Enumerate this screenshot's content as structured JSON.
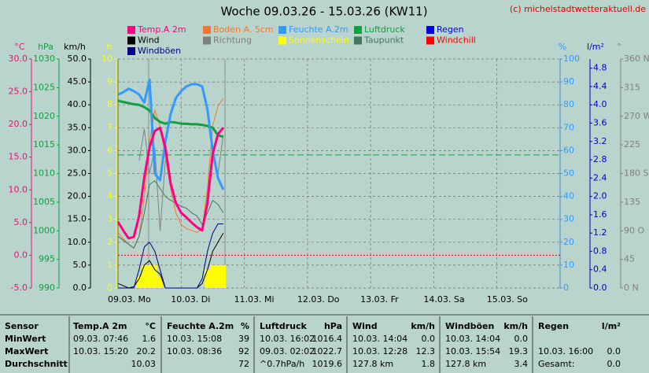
{
  "chart_data": {
    "type": "line",
    "title": "Woche 09.03.26 - 15.03.26 (KW11)",
    "credit": "(c) michelstadtwetteraktuell.de",
    "xlim": [
      0,
      168
    ],
    "xticks": [
      {
        "value": 0,
        "label": "09.03. Mo"
      },
      {
        "value": 24,
        "label": "10.03. Di"
      },
      {
        "value": 48,
        "label": "11.03. Mi"
      },
      {
        "value": 72,
        "label": "12.03. Do"
      },
      {
        "value": 96,
        "label": "13.03. Fr"
      },
      {
        "value": 120,
        "label": "14.03. Sa"
      },
      {
        "value": 144,
        "label": "15.03. So"
      },
      {
        "value": 168,
        "label": ""
      }
    ],
    "grid": true,
    "axes": [
      {
        "label": "°C",
        "color": "#e8107a",
        "lim": [
          -5,
          30
        ],
        "ticks": [
          {
            "value": -5,
            "label": "-5.0"
          },
          {
            "value": 0,
            "label": "0.0"
          },
          {
            "value": 5,
            "label": "5.0"
          },
          {
            "value": 10,
            "label": "10.0"
          },
          {
            "value": 15,
            "label": "15.0"
          },
          {
            "value": 20,
            "label": "20.0"
          },
          {
            "value": 25,
            "label": "25.0"
          },
          {
            "value": 30,
            "label": "30.0"
          }
        ]
      },
      {
        "label": "hPa",
        "color": "#10a040",
        "lim": [
          990,
          1030
        ],
        "ticks": [
          990,
          995,
          1000,
          1005,
          1010,
          1015,
          1020,
          1025,
          1030
        ]
      },
      {
        "label": "km/h",
        "color": "#000000",
        "lim": [
          0,
          50
        ],
        "ticks": [
          {
            "value": 0,
            "label": "0.0"
          },
          {
            "value": 5,
            "label": "5.0"
          },
          {
            "value": 10,
            "label": "10.0"
          },
          {
            "value": 15,
            "label": "15.0"
          },
          {
            "value": 20,
            "label": "20.0"
          },
          {
            "value": 25,
            "label": "25.0"
          },
          {
            "value": 30,
            "label": "30.0"
          },
          {
            "value": 35,
            "label": "35.0"
          },
          {
            "value": 40,
            "label": "40.0"
          },
          {
            "value": 45,
            "label": "45.0"
          },
          {
            "value": 50,
            "label": "50.0"
          }
        ]
      },
      {
        "label": "h",
        "color": "#ffff00",
        "lim": [
          0,
          10
        ],
        "ticks": [
          0,
          1,
          2,
          3,
          4,
          5,
          6,
          7,
          8,
          9,
          10
        ]
      },
      {
        "label": "%",
        "color": "#3399ff",
        "lim": [
          0,
          100
        ],
        "ticks": [
          0,
          10,
          20,
          30,
          40,
          50,
          60,
          70,
          80,
          90,
          100
        ]
      },
      {
        "label": "l/m²",
        "color": "#0000cc",
        "lim": [
          0,
          5
        ],
        "ticks": [
          {
            "value": 0,
            "label": "0.0"
          },
          0.4,
          0.8,
          {
            "value": 1.2,
            "label": "1.2"
          },
          1.6,
          {
            "value": 2,
            "label": "2.0"
          },
          2.4,
          2.8,
          3.2,
          3.6,
          {
            "value": 4,
            "label": "4.0"
          },
          4.4,
          4.8
        ]
      },
      {
        "label": "°",
        "color": "#808080",
        "lim": [
          0,
          360
        ],
        "ticks": [
          {
            "value": 0,
            "label": "0 N"
          },
          45,
          {
            "value": 90,
            "label": "90 O"
          },
          135,
          {
            "value": 180,
            "label": "180 S"
          },
          225,
          {
            "value": 270,
            "label": "270 W"
          },
          315,
          {
            "value": 360,
            "label": "360 N"
          }
        ]
      }
    ],
    "reference_lines": [
      {
        "axis": 1,
        "value": 1013.25,
        "color": "#10a040",
        "dash": "8 4"
      },
      {
        "axis": 0,
        "value": 0,
        "color": "#e00000",
        "dash": "2 2"
      }
    ],
    "x": [
      0,
      2,
      4,
      6,
      8,
      10,
      12,
      14,
      16,
      18,
      20,
      22,
      24,
      26,
      28,
      30,
      32,
      34,
      36,
      38,
      40
    ],
    "series": [
      {
        "name": "Temp.A 2m",
        "color": "#ff0080",
        "axis": 0,
        "mark": "line",
        "width": 3,
        "values": [
          5.1,
          3.8,
          2.6,
          2.8,
          6,
          12,
          16.5,
          19,
          19.5,
          16.5,
          11,
          8,
          6.5,
          5.8,
          5,
          4.3,
          3.8,
          8,
          15.5,
          18.5,
          19.5
        ]
      },
      {
        "name": "Boden A. 5cm",
        "color": "#f07830",
        "axis": 0,
        "mark": "line",
        "width": 1,
        "values": [
          3.5,
          2.5,
          1.7,
          1.1,
          2.9,
          9,
          17.4,
          22.2,
          19.8,
          15,
          10.2,
          6.5,
          4.7,
          4.1,
          3.8,
          3.5,
          4.1,
          10.2,
          19.8,
          22.8,
          24
        ]
      },
      {
        "name": "Feuchte A.2m",
        "color": "#3399ff",
        "axis": 4,
        "mark": "line",
        "width": 3,
        "values": [
          84.5,
          85.5,
          87,
          86,
          84.5,
          81,
          91,
          50,
          47,
          64,
          76,
          83,
          86,
          88,
          89,
          89,
          88,
          78,
          60,
          48,
          43
        ]
      },
      {
        "name": "Luftdruck",
        "color": "#10a040",
        "axis": 1,
        "mark": "line",
        "width": 3,
        "values": [
          1022.7,
          1022.5,
          1022.3,
          1022.1,
          1022,
          1021.6,
          1021,
          1019.7,
          1019,
          1018.7,
          1019,
          1018.9,
          1018.7,
          1018.7,
          1018.6,
          1018.6,
          1018.5,
          1018.3,
          1018,
          1016.7,
          1016.4
        ]
      },
      {
        "name": "Regen",
        "color": "#0000e0",
        "axis": 5,
        "mark": "bar",
        "values": [
          0,
          0,
          0,
          0,
          0,
          0,
          0,
          0,
          0,
          0,
          0,
          0,
          0,
          0,
          0,
          0,
          0,
          0,
          0,
          0,
          0
        ]
      },
      {
        "name": "Wind",
        "color": "#000000",
        "axis": 2,
        "mark": "line",
        "width": 1,
        "values": [
          1,
          0.5,
          0,
          0.3,
          2,
          5,
          6,
          4,
          3,
          0,
          0,
          0,
          0,
          0,
          0,
          0,
          1,
          4,
          8,
          10,
          12
        ]
      },
      {
        "name": "Richtung",
        "color": "#808080",
        "axis": 6,
        "mark": "line",
        "width": 1,
        "values": [
          null,
          null,
          null,
          null,
          200,
          250,
          180,
          220,
          90,
          200,
          null,
          null,
          null,
          null,
          null,
          null,
          null,
          150,
          220,
          180,
          240
        ]
      },
      {
        "name": "Sonnenschein",
        "color": "#ffff00",
        "axis": 3,
        "mark": "bar",
        "values": [
          0,
          0,
          0,
          0,
          0.5,
          1,
          1,
          1,
          0.5,
          0,
          0,
          0,
          0,
          0,
          0,
          0,
          0,
          0.8,
          1,
          1,
          1
        ]
      },
      {
        "name": "Taupunkt",
        "color": "#407860",
        "axis": 0,
        "mark": "line",
        "width": 1,
        "values": [
          2.9,
          2.3,
          1.7,
          1.1,
          2.9,
          6.5,
          10.8,
          11.4,
          10.2,
          9,
          8.4,
          8,
          7.5,
          7.2,
          6.5,
          6,
          4.7,
          6.5,
          8.4,
          7.8,
          6.5
        ]
      },
      {
        "name": "Windchill",
        "color": "#ff0000",
        "axis": 0,
        "mark": "line",
        "width": 1,
        "values": [
          null,
          null,
          null,
          null,
          null,
          null,
          null,
          null,
          null,
          null,
          null,
          null,
          null,
          null,
          null,
          null,
          null,
          null,
          null,
          null,
          null
        ]
      },
      {
        "name": "Windböen",
        "color": "#000080",
        "axis": 2,
        "mark": "line",
        "width": 1,
        "values": [
          0,
          0,
          0,
          0,
          4,
          9,
          10,
          8,
          4,
          0,
          0,
          0,
          0,
          0,
          0,
          0,
          2,
          8,
          12,
          14,
          14
        ]
      }
    ]
  },
  "table": {
    "header": [
      "Sensor",
      [
        "Temp.A 2m",
        "°C"
      ],
      [
        "Feuchte A.2m",
        "%"
      ],
      [
        "Luftdruck",
        "hPa"
      ],
      [
        "Wind",
        "km/h"
      ],
      [
        "Windböen",
        "km/h"
      ],
      [
        "Regen",
        "l/m²"
      ]
    ],
    "rows": [
      [
        "MinWert",
        [
          "09.03.  07:46",
          "1.6"
        ],
        [
          "10.03.  15:08",
          "39"
        ],
        [
          "10.03.  16:02",
          "1016.4"
        ],
        [
          "10.03.  14:04",
          "0.0"
        ],
        [
          "10.03.  14:04",
          "0.0"
        ],
        []
      ],
      [
        "MaxWert",
        [
          "10.03.  15:20",
          "20.2"
        ],
        [
          "10.03.  08:36",
          "92"
        ],
        [
          "09.03.  02:02",
          "1022.7"
        ],
        [
          "10.03.  12:28",
          "12.3"
        ],
        [
          "10.03.  15:54",
          "19.3"
        ],
        [
          "10.03.  16:00",
          "0.0"
        ]
      ],
      [
        "Durchschnitt",
        [
          "10.03"
        ],
        [
          "72"
        ],
        [
          "^0.7hPa/h",
          "1019.6"
        ],
        [
          "127.8 km",
          "1.8"
        ],
        [
          "127.8 km",
          "3.4"
        ],
        [
          "Gesamt:",
          "0.0"
        ]
      ]
    ]
  }
}
